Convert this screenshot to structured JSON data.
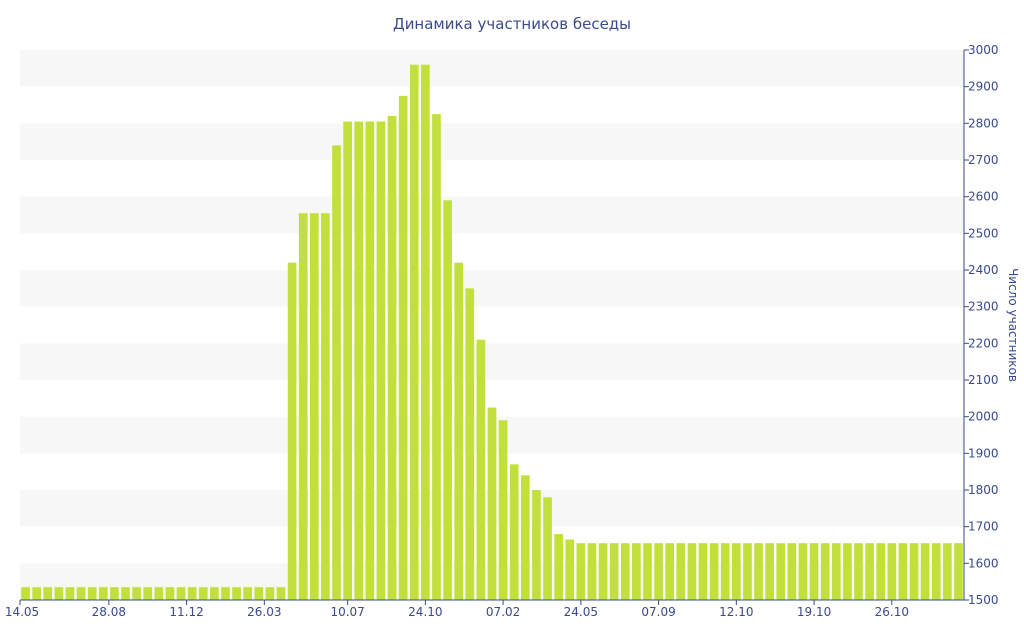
{
  "chart_data": {
    "type": "bar",
    "title": "Динамика участников беседы",
    "ylabel": "Число участников",
    "xlabel": "",
    "ylim": [
      1500,
      3000
    ],
    "yticks": [
      1500,
      1600,
      1700,
      1800,
      1900,
      2000,
      2100,
      2200,
      2300,
      2400,
      2500,
      2600,
      2700,
      2800,
      2900,
      3000
    ],
    "y_axis_side": "right",
    "x_tick_labels": [
      "14.05",
      "28.08",
      "11.12",
      "26.03",
      "10.07",
      "24.10",
      "07.02",
      "24.05",
      "07.09",
      "12.10",
      "19.10",
      "26.10"
    ],
    "x_tick_positions": [
      0,
      7.5,
      14.5,
      21.5,
      29,
      36,
      43,
      50,
      57,
      64,
      71,
      78
    ],
    "grid": "alternating horizontal bands",
    "bar_color": "#c2e03c",
    "band_color": "#f7f7f7",
    "text_color": "#3a4a8a",
    "values": [
      1535,
      1535,
      1535,
      1535,
      1535,
      1535,
      1535,
      1535,
      1535,
      1535,
      1535,
      1535,
      1535,
      1535,
      1535,
      1535,
      1535,
      1535,
      1535,
      1535,
      1535,
      1535,
      1535,
      1535,
      2420,
      2555,
      2555,
      2555,
      2740,
      2805,
      2805,
      2805,
      2805,
      2820,
      2875,
      2960,
      2960,
      2825,
      2590,
      2420,
      2350,
      2210,
      2025,
      1990,
      1870,
      1840,
      1800,
      1780,
      1680,
      1665,
      1655,
      1655,
      1655,
      1655,
      1655,
      1655,
      1655,
      1655,
      1655,
      1655,
      1655,
      1655,
      1655,
      1655,
      1655,
      1655,
      1655,
      1655,
      1655,
      1655,
      1655,
      1655,
      1655,
      1655,
      1655,
      1655,
      1655,
      1655,
      1655,
      1655,
      1655,
      1655,
      1655,
      1655,
      1655
    ]
  }
}
